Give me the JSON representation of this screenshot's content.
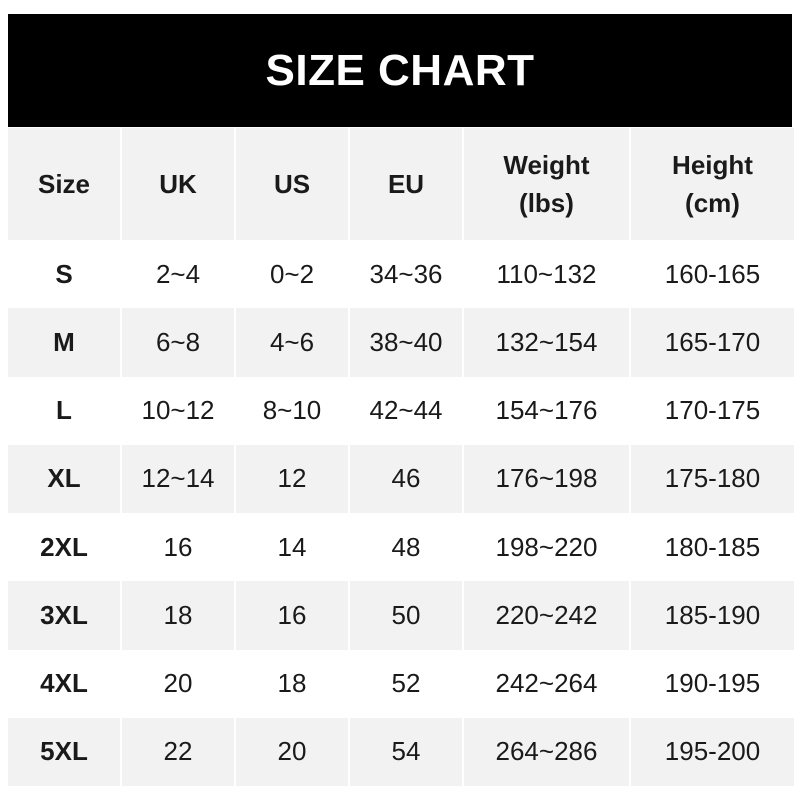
{
  "title": "SIZE CHART",
  "headers": [
    "Size",
    "UK",
    "US",
    "EU",
    "Weight\n(lbs)",
    "Height\n(cm)"
  ],
  "header_lines": [
    [
      "Size"
    ],
    [
      "UK"
    ],
    [
      "US"
    ],
    [
      "EU"
    ],
    [
      "Weight",
      "(lbs)"
    ],
    [
      "Height",
      "(cm)"
    ]
  ],
  "rows": [
    [
      "S",
      "2~4",
      "0~2",
      "34~36",
      "110~132",
      "160-165"
    ],
    [
      "M",
      "6~8",
      "4~6",
      "38~40",
      "132~154",
      "165-170"
    ],
    [
      "L",
      "10~12",
      "8~10",
      "42~44",
      "154~176",
      "170-175"
    ],
    [
      "XL",
      "12~14",
      "12",
      "46",
      "176~198",
      "175-180"
    ],
    [
      "2XL",
      "16",
      "14",
      "48",
      "198~220",
      "180-185"
    ],
    [
      "3XL",
      "18",
      "16",
      "50",
      "220~242",
      "185-190"
    ],
    [
      "4XL",
      "20",
      "18",
      "52",
      "242~264",
      "190-195"
    ],
    [
      "5XL",
      "22",
      "20",
      "54",
      "264~286",
      "195-200"
    ]
  ],
  "colors": {
    "title_bg": "#000000",
    "title_text": "#ffffff",
    "stripe": "#f2f2f2",
    "text": "#1a1a1a"
  }
}
